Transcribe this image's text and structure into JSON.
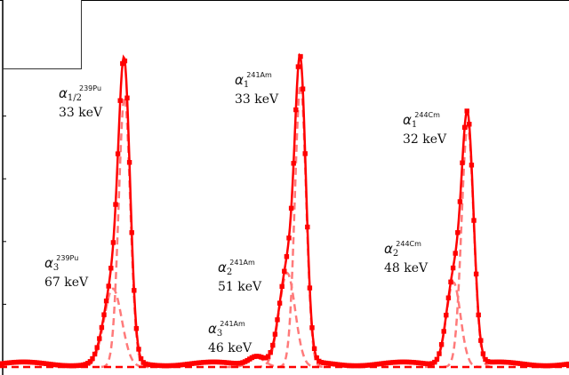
{
  "chart_data": {
    "type": "line",
    "title": "",
    "xlabel": "",
    "ylabel": "",
    "xlim": [
      0,
      640
    ],
    "ylim": [
      0,
      1.17
    ],
    "grid": false,
    "legend": "top-left",
    "colors": {
      "data": "#ff0000",
      "fit_components": "#ff7a7a"
    },
    "components": [
      {
        "name": "alpha1/2 239Pu",
        "center": 140,
        "sigma": 6.5,
        "height": 0.86
      },
      {
        "name": "alpha3 239Pu",
        "center": 127,
        "sigma": 10,
        "height": 0.25
      },
      {
        "name": "alpha1 241Am",
        "center": 338,
        "sigma": 6.3,
        "height": 0.9
      },
      {
        "name": "alpha2 241Am",
        "center": 323,
        "sigma": 9,
        "height": 0.3
      },
      {
        "name": "alpha3 241Am",
        "center": 289,
        "sigma": 9,
        "height": 0.03
      },
      {
        "name": "alpha1 244Cm",
        "center": 526,
        "sigma": 6.8,
        "height": 0.77
      },
      {
        "name": "alpha2 244Cm",
        "center": 510,
        "sigma": 8,
        "height": 0.27
      }
    ],
    "baseline": 0.01,
    "annotations": [
      {
        "symbol": "α",
        "sub": "1/2",
        "isotope": "239Pu",
        "energy": "33 keV"
      },
      {
        "symbol": "α",
        "sub": "3",
        "isotope": "239Pu",
        "energy": "67 keV"
      },
      {
        "symbol": "α",
        "sub": "1",
        "isotope": "241Am",
        "energy": "33 keV"
      },
      {
        "symbol": "α",
        "sub": "2",
        "isotope": "241Am",
        "energy": "51 keV"
      },
      {
        "symbol": "α",
        "sub": "3",
        "isotope": "241Am",
        "energy": "46 keV"
      },
      {
        "symbol": "α",
        "sub": "1",
        "isotope": "244Cm",
        "energy": "32 keV"
      },
      {
        "symbol": "α",
        "sub": "2",
        "isotope": "244Cm",
        "energy": "48 keV"
      }
    ]
  }
}
